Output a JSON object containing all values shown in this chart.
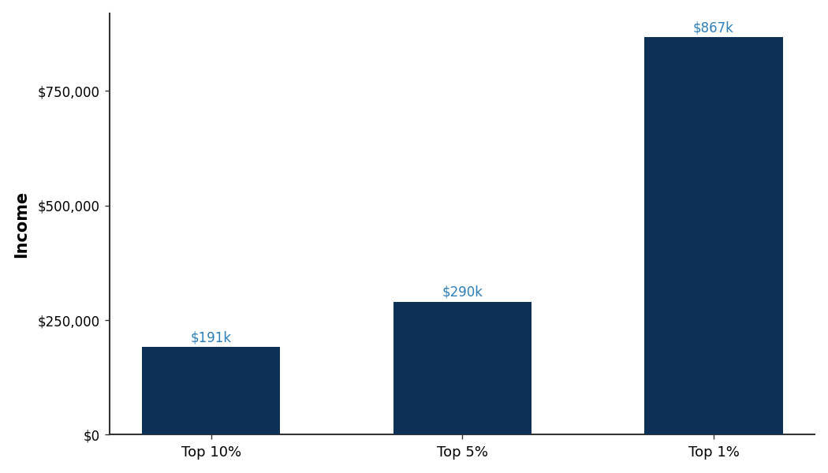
{
  "categories": [
    "Top 10%",
    "Top 5%",
    "Top 1%"
  ],
  "values": [
    191000,
    290000,
    867000
  ],
  "labels": [
    "$191k",
    "$290k",
    "$867k"
  ],
  "bar_color": "#0d3057",
  "label_color": "#2e7eb8",
  "ylabel": "Income",
  "ylim": [
    0,
    920000
  ],
  "yticks": [
    0,
    250000,
    500000,
    750000
  ],
  "ytick_labels": [
    "$0",
    "$250,000",
    "$500,000",
    "$750,000"
  ],
  "background_color": "#ffffff",
  "label_fontsize": 12,
  "ylabel_fontsize": 15,
  "xlabel_fontsize": 13,
  "tick_fontsize": 12,
  "bar_width": 0.55
}
